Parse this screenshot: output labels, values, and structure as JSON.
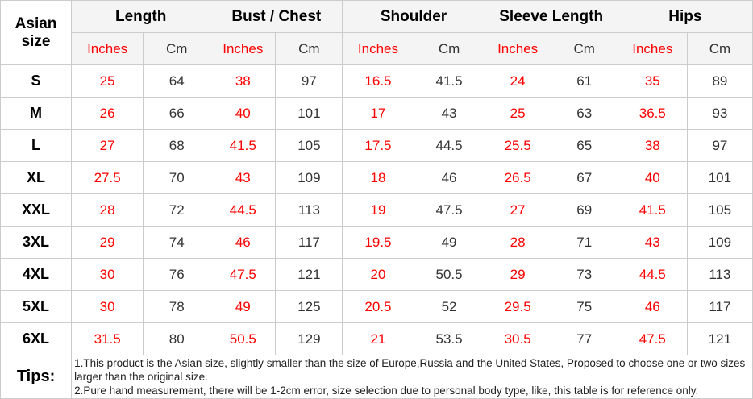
{
  "chart_data": {
    "type": "table",
    "corner_header": "Asian size",
    "column_groups": [
      "Length",
      "Bust / Chest",
      "Shoulder",
      "Sleeve Length",
      "Hips"
    ],
    "unit_subheaders": [
      "Inches",
      "Cm"
    ],
    "rows": [
      {
        "size": "S",
        "values": [
          "25",
          "64",
          "38",
          "97",
          "16.5",
          "41.5",
          "24",
          "61",
          "35",
          "89"
        ]
      },
      {
        "size": "M",
        "values": [
          "26",
          "66",
          "40",
          "101",
          "17",
          "43",
          "25",
          "63",
          "36.5",
          "93"
        ]
      },
      {
        "size": "L",
        "values": [
          "27",
          "68",
          "41.5",
          "105",
          "17.5",
          "44.5",
          "25.5",
          "65",
          "38",
          "97"
        ]
      },
      {
        "size": "XL",
        "values": [
          "27.5",
          "70",
          "43",
          "109",
          "18",
          "46",
          "26.5",
          "67",
          "40",
          "101"
        ]
      },
      {
        "size": "XXL",
        "values": [
          "28",
          "72",
          "44.5",
          "113",
          "19",
          "47.5",
          "27",
          "69",
          "41.5",
          "105"
        ]
      },
      {
        "size": "3XL",
        "values": [
          "29",
          "74",
          "46",
          "117",
          "19.5",
          "49",
          "28",
          "71",
          "43",
          "109"
        ]
      },
      {
        "size": "4XL",
        "values": [
          "30",
          "76",
          "47.5",
          "121",
          "20",
          "50.5",
          "29",
          "73",
          "44.5",
          "113"
        ]
      },
      {
        "size": "5XL",
        "values": [
          "30",
          "78",
          "49",
          "125",
          "20.5",
          "52",
          "29.5",
          "75",
          "46",
          "117"
        ]
      },
      {
        "size": "6XL",
        "values": [
          "31.5",
          "80",
          "50.5",
          "129",
          "21",
          "53.5",
          "30.5",
          "77",
          "47.5",
          "121"
        ]
      }
    ],
    "tips_label": "Tips:",
    "tips_lines": [
      "1.This product is the Asian size, slightly smaller than the size of Europe,Russia and the United States, Proposed to choose one or two sizes larger than the original size.",
      "2.Pure hand measurement, there will be 1-2cm error, size selection due to personal body type, like, this table is for reference only."
    ],
    "colors": {
      "inches_accent": "#fe0000",
      "cm_text": "#333333",
      "header_background": "#f4f4f4",
      "border": "#cccccc"
    }
  }
}
